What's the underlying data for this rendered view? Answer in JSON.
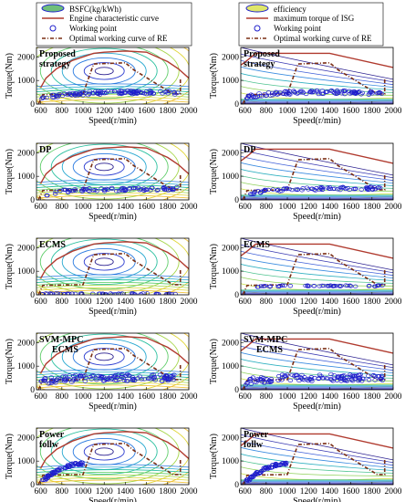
{
  "legends": {
    "left": [
      "BSFC(kg/kWh)",
      "Engine characteristic curve",
      "Working point",
      "Optimal working curve of RE"
    ],
    "right": [
      "efficiency",
      "maximum torque of ISG",
      "Working point",
      "Optimal working curve of RE"
    ]
  },
  "colors": {
    "engine_curve": "#b03a2e",
    "optimal_curve": "#7a2e14",
    "working_point": "#1f1fcc",
    "legend_box": "#1f1fcc"
  },
  "chart_data": [
    {
      "type": "scatter",
      "column": "BSFC",
      "strategy": "Proposed strategy",
      "label_lines": [
        "Proposed",
        "strategy"
      ],
      "xlabel": "Speed(r/min)",
      "ylabel": "Torque(Nm)",
      "xlim": [
        560,
        2000
      ],
      "ylim": [
        0,
        2400
      ],
      "xticks": [
        "600",
        "800",
        "1000",
        "1200",
        "1400",
        "1600",
        "1800",
        "2000"
      ],
      "yticks": [
        "0",
        "1000",
        "2000"
      ],
      "working_points": {
        "x_range": [
          600,
          1900
        ],
        "torque_trend": [
          [
            600,
            250
          ],
          [
            800,
            380
          ],
          [
            1000,
            450
          ],
          [
            1200,
            480
          ],
          [
            1500,
            500
          ],
          [
            1900,
            480
          ]
        ],
        "spread": 80,
        "count": 110
      }
    },
    {
      "type": "scatter",
      "column": "ISG efficiency",
      "strategy": "Proposed strategy",
      "label_lines": [
        "Proposed",
        "strategy"
      ],
      "xlabel": "Speed(r/min)",
      "ylabel": "Torque(Nm)",
      "xlim": [
        560,
        2000
      ],
      "ylim": [
        0,
        2400
      ],
      "xticks": [
        "600",
        "800",
        "1000",
        "1200",
        "1400",
        "1600",
        "1800",
        "2000"
      ],
      "yticks": [
        "0",
        "1000",
        "2000"
      ],
      "working_points": {
        "x_range": [
          600,
          1900
        ],
        "torque_trend": [
          [
            600,
            280
          ],
          [
            800,
            420
          ],
          [
            1000,
            480
          ],
          [
            1200,
            500
          ],
          [
            1500,
            500
          ],
          [
            1900,
            450
          ]
        ],
        "spread": 80,
        "count": 110
      }
    },
    {
      "type": "scatter",
      "column": "BSFC",
      "strategy": "DP",
      "label_lines": [
        "DP"
      ],
      "xlabel": "Speed(r/min)",
      "ylabel": "Torque(Nm)",
      "xlim": [
        560,
        2000
      ],
      "ylim": [
        0,
        2400
      ],
      "xticks": [
        "600",
        "800",
        "1000",
        "1200",
        "1400",
        "1600",
        "1800",
        "2000"
      ],
      "yticks": [
        "0",
        "1000",
        "2000"
      ],
      "working_points": {
        "x_range": [
          650,
          1900
        ],
        "torque_trend": [
          [
            650,
            200
          ],
          [
            800,
            380
          ],
          [
            1000,
            420
          ],
          [
            1400,
            450
          ],
          [
            1900,
            480
          ]
        ],
        "spread": 70,
        "count": 80
      }
    },
    {
      "type": "scatter",
      "column": "ISG efficiency",
      "strategy": "DP",
      "label_lines": [
        "DP"
      ],
      "xlabel": "Speed(r/min)",
      "ylabel": "Torque(Nm)",
      "xlim": [
        560,
        2000
      ],
      "ylim": [
        0,
        2400
      ],
      "xticks": [
        "600",
        "800",
        "1000",
        "1200",
        "1400",
        "1600",
        "1800",
        "2000"
      ],
      "yticks": [
        "0",
        "1000",
        "2000"
      ],
      "working_points": {
        "x_range": [
          650,
          1900
        ],
        "torque_trend": [
          [
            650,
            250
          ],
          [
            800,
            400
          ],
          [
            1000,
            450
          ],
          [
            1400,
            480
          ],
          [
            1900,
            500
          ]
        ],
        "spread": 70,
        "count": 80
      }
    },
    {
      "type": "scatter",
      "column": "BSFC",
      "strategy": "ECMS",
      "label_lines": [
        "ECMS"
      ],
      "xlabel": "Speed(r/min)",
      "ylabel": "Torque(Nm)",
      "xlim": [
        560,
        2000
      ],
      "ylim": [
        0,
        2400
      ],
      "xticks": [
        "600",
        "800",
        "1000",
        "1200",
        "1400",
        "1600",
        "1800",
        "2000"
      ],
      "yticks": [
        "0",
        "1000",
        "2000"
      ],
      "working_points": {
        "x_range": [
          600,
          1900
        ],
        "torque_trend": [
          [
            600,
            50
          ],
          [
            1000,
            40
          ],
          [
            1400,
            40
          ],
          [
            1900,
            40
          ]
        ],
        "spread": 25,
        "count": 55
      }
    },
    {
      "type": "scatter",
      "column": "ISG efficiency",
      "strategy": "ECMS",
      "label_lines": [
        "ECMS"
      ],
      "xlabel": "Speed(r/min)",
      "ylabel": "Torque(Nm)",
      "xlim": [
        560,
        2000
      ],
      "ylim": [
        0,
        2400
      ],
      "xticks": [
        "600",
        "800",
        "1000",
        "1200",
        "1400",
        "1600",
        "1800",
        "2000"
      ],
      "yticks": [
        "0",
        "1000",
        "2000"
      ],
      "working_points": {
        "x_range": [
          700,
          1900
        ],
        "torque_trend": [
          [
            700,
            350
          ],
          [
            1000,
            380
          ],
          [
            1400,
            380
          ],
          [
            1900,
            380
          ]
        ],
        "spread": 25,
        "count": 50
      }
    },
    {
      "type": "scatter",
      "column": "BSFC",
      "strategy": "SVM-MPC ECMS",
      "label_lines": [
        "SVM-MPC",
        "ECMS"
      ],
      "xlabel": "Speed(r/min)",
      "ylabel": "Torque(Nm)",
      "xlim": [
        560,
        2000
      ],
      "ylim": [
        0,
        2400
      ],
      "xticks": [
        "600",
        "800",
        "1000",
        "1200",
        "1400",
        "1600",
        "1800",
        "2000"
      ],
      "yticks": [
        "0",
        "1000",
        "2000"
      ],
      "working_points": {
        "x_range": [
          600,
          1900
        ],
        "torque_trend": [
          [
            600,
            350
          ],
          [
            800,
            450
          ],
          [
            1000,
            500
          ],
          [
            1400,
            520
          ],
          [
            1900,
            500
          ]
        ],
        "spread": 150,
        "count": 130
      }
    },
    {
      "type": "scatter",
      "column": "ISG efficiency",
      "strategy": "SVM-MPC ECMS",
      "label_lines": [
        "SVM-MPC",
        "ECMS"
      ],
      "xlabel": "Speed(r/min)",
      "ylabel": "Torque(Nm)",
      "xlim": [
        560,
        2000
      ],
      "ylim": [
        0,
        2400
      ],
      "xticks": [
        "600",
        "800",
        "1000",
        "1200",
        "1400",
        "1600",
        "1800",
        "2000"
      ],
      "yticks": [
        "0",
        "1000",
        "2000"
      ],
      "working_points": {
        "x_range": [
          600,
          1900
        ],
        "torque_trend": [
          [
            600,
            350
          ],
          [
            800,
            450
          ],
          [
            1000,
            500
          ],
          [
            1400,
            520
          ],
          [
            1900,
            500
          ]
        ],
        "spread": 150,
        "count": 130
      }
    },
    {
      "type": "scatter",
      "column": "BSFC",
      "strategy": "Power follw",
      "label_lines": [
        "Power",
        "follw"
      ],
      "xlabel": "Speed(r/min)",
      "ylabel": "Torque(Nm)",
      "xlim": [
        560,
        2000
      ],
      "ylim": [
        0,
        2400
      ],
      "xticks": [
        "600",
        "800",
        "1000",
        "1200",
        "1400",
        "1600",
        "1800",
        "2000"
      ],
      "yticks": [
        "0",
        "1000",
        "2000"
      ],
      "working_points": {
        "x_range": [
          600,
          1000
        ],
        "torque_trend": [
          [
            600,
            100
          ],
          [
            700,
            450
          ],
          [
            800,
            700
          ],
          [
            900,
            850
          ],
          [
            1000,
            900
          ]
        ],
        "spread": 60,
        "count": 70
      }
    },
    {
      "type": "scatter",
      "column": "ISG efficiency",
      "strategy": "Power follw",
      "label_lines": [
        "Power",
        "follw"
      ],
      "xlabel": "Speed(r/min)",
      "ylabel": "Torque(Nm)",
      "xlim": [
        560,
        2000
      ],
      "ylim": [
        0,
        2400
      ],
      "xticks": [
        "600",
        "800",
        "1000",
        "1200",
        "1400",
        "1600",
        "1800",
        "2000"
      ],
      "yticks": [
        "0",
        "1000",
        "2000"
      ],
      "working_points": {
        "x_range": [
          600,
          1000
        ],
        "torque_trend": [
          [
            600,
            100
          ],
          [
            700,
            450
          ],
          [
            800,
            700
          ],
          [
            900,
            850
          ],
          [
            1000,
            900
          ]
        ],
        "spread": 60,
        "count": 70
      }
    }
  ],
  "curves": {
    "engine_characteristic": [
      [
        600,
        700
      ],
      [
        650,
        1100
      ],
      [
        750,
        1500
      ],
      [
        900,
        1850
      ],
      [
        1000,
        2000
      ],
      [
        1100,
        2150
      ],
      [
        1200,
        2200
      ],
      [
        1400,
        2250
      ],
      [
        1600,
        2200
      ],
      [
        1800,
        1800
      ],
      [
        1900,
        1500
      ],
      [
        2000,
        1100
      ]
    ],
    "isg_max_torque": [
      [
        560,
        1650
      ],
      [
        620,
        1850
      ],
      [
        700,
        2150
      ],
      [
        1400,
        2150
      ],
      [
        2000,
        1550
      ]
    ],
    "optimal_working": [
      [
        580,
        20
      ],
      [
        620,
        400
      ],
      [
        1000,
        430
      ],
      [
        1100,
        1700
      ],
      [
        1400,
        1750
      ],
      [
        1480,
        1450
      ],
      [
        1850,
        430
      ],
      [
        1920,
        430
      ],
      [
        1920,
        1100
      ]
    ]
  }
}
